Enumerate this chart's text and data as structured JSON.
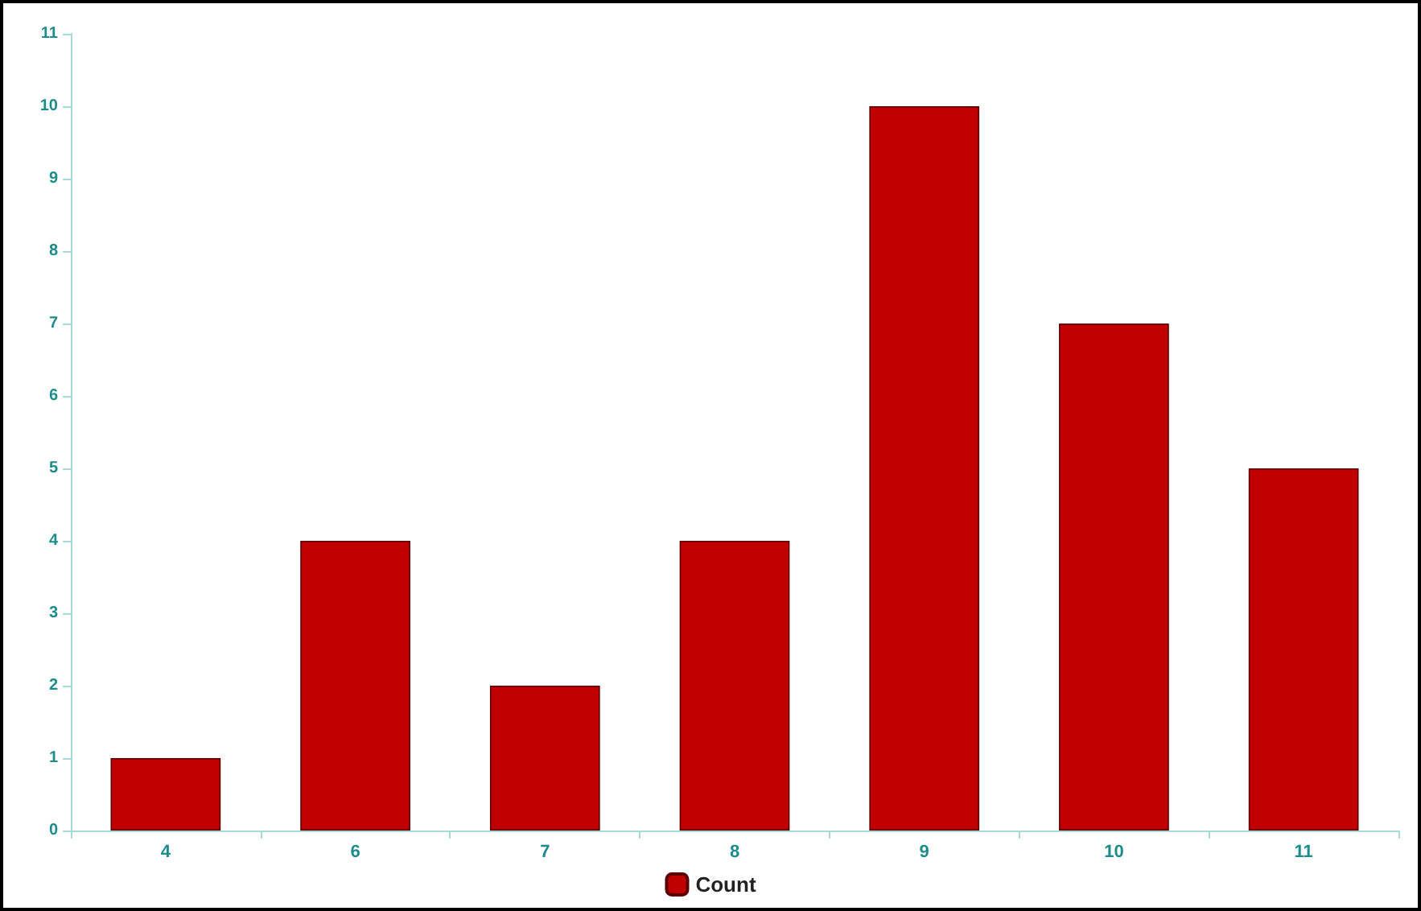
{
  "chart_data": {
    "type": "bar",
    "categories": [
      "4",
      "6",
      "7",
      "8",
      "9",
      "10",
      "11"
    ],
    "series": [
      {
        "name": "Count",
        "color": "#c00000",
        "values": [
          1,
          4,
          2,
          4,
          10,
          7,
          5
        ]
      }
    ],
    "ylim": [
      0,
      11
    ],
    "yticks": [
      0,
      1,
      2,
      3,
      4,
      5,
      6,
      7,
      8,
      9,
      10,
      11
    ],
    "grid": false,
    "legend": "bottom"
  }
}
